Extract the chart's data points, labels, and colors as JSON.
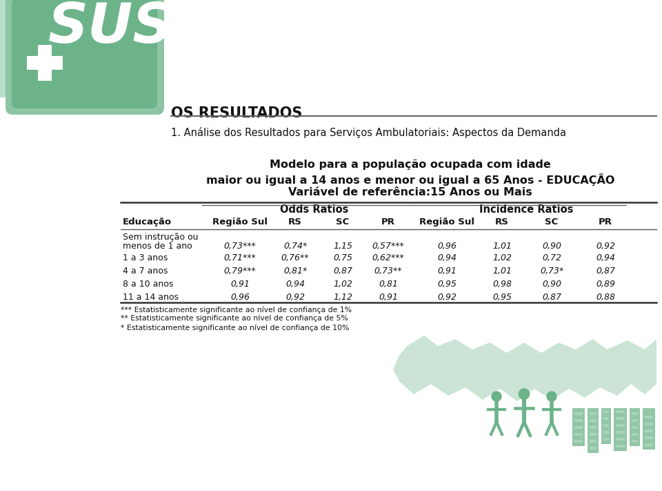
{
  "title_section": "OS RESULTADOS",
  "subtitle1": "1. Análise dos Resultados para Serviços Ambulatoriais: Aspectos da Demanda",
  "subtitle2_line1": "Modelo para a população ocupada com idade",
  "subtitle2_line2": "maior ou igual a 14 anos e menor ou igual a 65 Anos - EDUCAÇÃO",
  "subtitle2_line3": "Variável de referência:15 Anos ou Mais",
  "col_header_left": "Educação",
  "group_header1": "Odds Ratios",
  "group_header2": "Incidence Ratios",
  "subheaders": [
    "Região Sul",
    "RS",
    "SC",
    "PR",
    "Região Sul",
    "RS",
    "SC",
    "PR"
  ],
  "row_labels": [
    [
      "Sem instrução ou",
      "menos de 1 ano"
    ],
    [
      "1 a 3 anos"
    ],
    [
      "4 a 7 anos"
    ],
    [
      "8 a 10 anos"
    ],
    [
      "11 a 14 anos"
    ]
  ],
  "table_data": [
    [
      "0,73***",
      "0,74*",
      "1,15",
      "0,57***",
      "0,96",
      "1,01",
      "0,90",
      "0,92"
    ],
    [
      "0,71***",
      "0,76**",
      "0,75",
      "0,62***",
      "0,94",
      "1,02",
      "0,72",
      "0,94"
    ],
    [
      "0,79***",
      "0,81*",
      "0,87",
      "0,73**",
      "0,91",
      "1,01",
      "0,73*",
      "0,87"
    ],
    [
      "0,91",
      "0,94",
      "1,02",
      "0,81",
      "0,95",
      "0,98",
      "0,90",
      "0,89"
    ],
    [
      "0,96",
      "0,92",
      "1,12",
      "0,91",
      "0,92",
      "0,95",
      "0,87",
      "0,88"
    ]
  ],
  "footnotes": [
    "*** Estatisticamente significante ao nível de confiança de 1%",
    "** Estatisticamente significante ao nível de confiança de 5%",
    "* Estatisticamente significante ao nível de confiança de 10%"
  ],
  "bg_color": "#ffffff",
  "logo_green_dark": "#5a9e75",
  "logo_green_mid": "#6db38a",
  "logo_green_light": "#8dc5a4",
  "logo_green_pale": "#b8dfc9",
  "text_color": "#1a1a1a",
  "separator_color": "#555555"
}
